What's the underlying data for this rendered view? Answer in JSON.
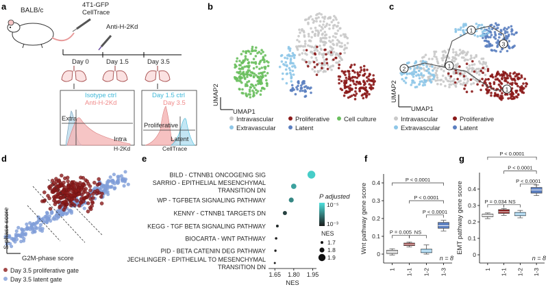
{
  "panels": {
    "a": {
      "label": "a",
      "mouse": "BALB/c",
      "injection1": "4T1-GFP",
      "injection2": "CellTrace",
      "antibody": "Anti-H-2Kd",
      "days": [
        "Day 0",
        "Day 1.5",
        "Day 3.5"
      ],
      "hist1_legend": [
        "Isotype ctrl",
        "Anti-H-2Kd"
      ],
      "hist1_gates": [
        "Extra",
        "Intra"
      ],
      "hist1_xlabel": "H-2Kd",
      "hist2_legend": [
        "Day 1.5 ctrl",
        "Day 3.5"
      ],
      "hist2_gates": [
        "Proliferative",
        "Latent"
      ],
      "hist2_xlabel": "CellTrace"
    },
    "b": {
      "label": "b",
      "xlabel": "UMAP1",
      "ylabel": "UMAP2",
      "legend": [
        "Intravascular",
        "Proliferative",
        "Cell culture",
        "Extravascular",
        "Latent"
      ]
    },
    "c": {
      "label": "c",
      "xlabel": "UMAP1",
      "ylabel": "UMAP2",
      "nodes": [
        "2",
        "1",
        "1",
        "1",
        "3"
      ],
      "legend": [
        "Intravascular",
        "Proliferative",
        "Extravascular",
        "Latent"
      ]
    },
    "d": {
      "label": "d",
      "xlabel": "G2M-phase score",
      "ylabel": "S-phase score",
      "legend": [
        "Day 3.5 proliferative gate",
        "Day 3.5 latent gate"
      ]
    },
    "e": {
      "label": "e",
      "xlabel": "NES"
    },
    "f": {
      "label": "f",
      "ylabel": "Wnt pathway gene score",
      "n": "n = 8"
    },
    "g": {
      "label": "g",
      "ylabel": "EMT pathway gene score",
      "n": "n = 8"
    }
  },
  "colors": {
    "intravascular": "#c9c9c9",
    "proliferative": "#8b1a1a",
    "cell_culture": "#6abf5e",
    "extravascular": "#8ec7e8",
    "latent": "#5b7fc0",
    "isotype": "#3fb8d8",
    "anti": "#f08a8a"
  },
  "chart_data": [
    {
      "type": "scatter",
      "title": "",
      "xlabel": "NES",
      "ylabel": "",
      "categories": [
        "BILD - CTNNB1 ONCOGENIG SIG",
        "SARRIO - EPITHELIAL MESENCHYMAL TRANSITION DN",
        "WP - TGFBETA SIGNALING PATHWAY",
        "KENNY - CTNNB1 TARGETS DN",
        "KEGG - TGF BETA SIGNALING PATHWAY",
        "BIOCARTA - WNT PATHWAY",
        "PID - BETA CATENIN DEG PATHWAY",
        "JECHLINGER - EPITHELIAL TO MESENCHYMAL TRANSITION DN"
      ],
      "x": [
        1.94,
        1.8,
        1.78,
        1.73,
        1.67,
        1.66,
        1.655,
        1.65
      ],
      "nes_size": [
        1.93,
        1.82,
        1.8,
        1.76,
        1.7,
        1.69,
        1.68,
        1.67
      ],
      "color_level": [
        1.0,
        0.75,
        0.6,
        0.2,
        0.05,
        0.0,
        0.0,
        0.0
      ],
      "xticks": [
        "1.65",
        "1.80",
        "1.95"
      ],
      "xlim": [
        1.6,
        1.98
      ],
      "legend_color_title": "P adjusted",
      "legend_color_ticks": [
        "10⁻⁵",
        "10⁻³"
      ],
      "legend_size_title": "NES",
      "legend_size_ticks": [
        "1.7",
        "1.8",
        "1.9"
      ]
    },
    {
      "type": "box",
      "ylabel": "Wnt pathway gene score",
      "categories": [
        "1",
        "1-1",
        "1-2",
        "1-3"
      ],
      "ylim": [
        -0.05,
        0.45
      ],
      "yticks": [
        "0",
        "0.1",
        "0.2",
        "0.3",
        "0.4"
      ],
      "boxes": [
        {
          "min": -0.005,
          "q1": 0.003,
          "median": 0.012,
          "q3": 0.022,
          "max": 0.03,
          "color": "#c9c9c9"
        },
        {
          "min": 0.04,
          "q1": 0.048,
          "median": 0.055,
          "q3": 0.062,
          "max": 0.068,
          "color": "#8b1a1a"
        },
        {
          "min": 0.0,
          "q1": 0.008,
          "median": 0.018,
          "q3": 0.028,
          "max": 0.052,
          "color": "#8ec7e8"
        },
        {
          "min": 0.13,
          "q1": 0.145,
          "median": 0.16,
          "q3": 0.178,
          "max": 0.19,
          "color": "#5b7fc0"
        }
      ],
      "brackets": [
        {
          "from": 0,
          "to": 1,
          "label": "P = 0.005"
        },
        {
          "from": 1,
          "to": 2,
          "label": "NS"
        },
        {
          "from": 2,
          "to": 3,
          "label": "P < 0.0001"
        },
        {
          "from": 1,
          "to": 3,
          "label": "P < 0.0001"
        },
        {
          "from": 0,
          "to": 3,
          "label": "P < 0.0001"
        }
      ],
      "n_label": "n = 8"
    },
    {
      "type": "box",
      "ylabel": "EMT pathway gene score",
      "categories": [
        "1",
        "1-1",
        "1-2",
        "1-3"
      ],
      "ylim": [
        -0.05,
        0.5
      ],
      "yticks": [
        "0",
        "0.1",
        "0.2",
        "0.3",
        "0.4"
      ],
      "boxes": [
        {
          "min": 0.22,
          "q1": 0.232,
          "median": 0.24,
          "q3": 0.248,
          "max": 0.255,
          "color": "#c9c9c9"
        },
        {
          "min": 0.24,
          "q1": 0.252,
          "median": 0.262,
          "q3": 0.275,
          "max": 0.282,
          "color": "#8b1a1a"
        },
        {
          "min": 0.225,
          "q1": 0.238,
          "median": 0.248,
          "q3": 0.258,
          "max": 0.27,
          "color": "#8ec7e8"
        },
        {
          "min": 0.36,
          "q1": 0.375,
          "median": 0.395,
          "q3": 0.41,
          "max": 0.425,
          "color": "#5b7fc0"
        }
      ],
      "brackets": [
        {
          "from": 0,
          "to": 1,
          "label": "P = 0.034"
        },
        {
          "from": 1,
          "to": 2,
          "label": "NS"
        },
        {
          "from": 2,
          "to": 3,
          "label": "P < 0.0001"
        },
        {
          "from": 1,
          "to": 3,
          "label": "P < 0.0001"
        },
        {
          "from": 0,
          "to": 3,
          "label": "P < 0.0001"
        }
      ],
      "n_label": "n = 8"
    }
  ]
}
